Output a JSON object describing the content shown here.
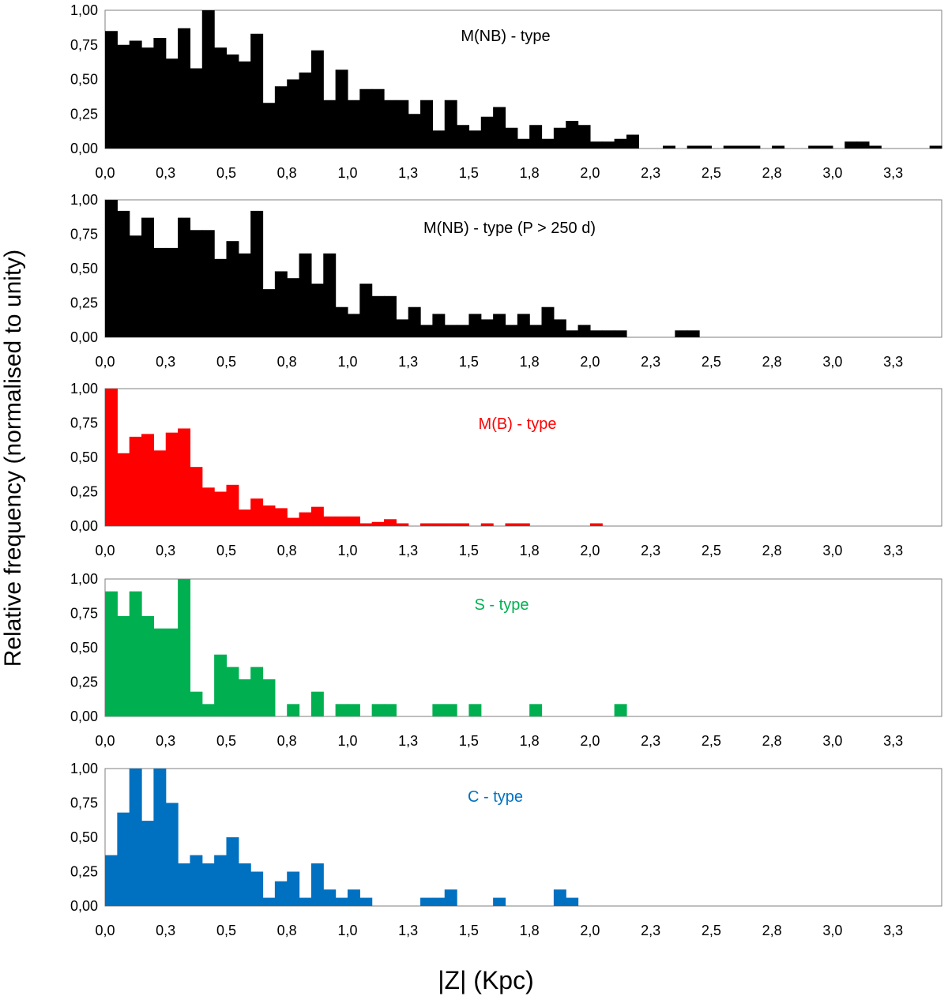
{
  "figure": {
    "ylabel": "Relative frequency (normalised to unity)",
    "xlabel": "|Z|  (Kpc)"
  },
  "chart_data": [
    {
      "type": "bar",
      "title": "M(NB) - type",
      "color": "#000000",
      "xlim": [
        0,
        3.45
      ],
      "ylim": [
        0,
        1
      ],
      "bin_width": 0.05,
      "yticks": [
        "0,00",
        "0,25",
        "0,50",
        "0,75",
        "1,00"
      ],
      "xticks": [
        "0,0",
        "0,3",
        "0,5",
        "0,8",
        "1,0",
        "1,3",
        "1,5",
        "1,8",
        "2,0",
        "2,3",
        "2,5",
        "2,8",
        "3,0",
        "3,3"
      ],
      "values": [
        0.85,
        0.75,
        0.78,
        0.73,
        0.8,
        0.65,
        0.87,
        0.58,
        1.0,
        0.73,
        0.68,
        0.63,
        0.83,
        0.33,
        0.45,
        0.5,
        0.55,
        0.71,
        0.35,
        0.57,
        0.35,
        0.43,
        0.43,
        0.35,
        0.35,
        0.25,
        0.35,
        0.13,
        0.35,
        0.17,
        0.13,
        0.23,
        0.3,
        0.15,
        0.07,
        0.17,
        0.07,
        0.15,
        0.2,
        0.17,
        0.05,
        0.05,
        0.07,
        0.1,
        0,
        0,
        0.02,
        0,
        0.02,
        0.02,
        0,
        0.02,
        0.02,
        0.02,
        0,
        0.02,
        0,
        0,
        0.02,
        0.02,
        0,
        0.05,
        0.05,
        0.02,
        0,
        0,
        0,
        0,
        0.02
      ]
    },
    {
      "type": "bar",
      "title": "M(NB) - type (P > 250 d)",
      "color": "#000000",
      "xlim": [
        0,
        3.45
      ],
      "ylim": [
        0,
        1
      ],
      "bin_width": 0.05,
      "yticks": [
        "0,00",
        "0,25",
        "0,50",
        "0,75",
        "1,00"
      ],
      "xticks": [
        "0,0",
        "0,3",
        "0,5",
        "0,8",
        "1,0",
        "1,3",
        "1,5",
        "1,8",
        "2,0",
        "2,3",
        "2,5",
        "2,8",
        "3,0",
        "3,3"
      ],
      "values": [
        1.0,
        0.92,
        0.74,
        0.87,
        0.65,
        0.65,
        0.87,
        0.78,
        0.78,
        0.57,
        0.7,
        0.61,
        0.92,
        0.35,
        0.48,
        0.43,
        0.61,
        0.39,
        0.61,
        0.22,
        0.17,
        0.39,
        0.3,
        0.3,
        0.13,
        0.22,
        0.09,
        0.17,
        0.09,
        0.09,
        0.17,
        0.13,
        0.17,
        0.09,
        0.17,
        0.09,
        0.22,
        0.13,
        0.05,
        0.09,
        0.05,
        0.05,
        0.05,
        0,
        0,
        0,
        0,
        0.05,
        0.05
      ]
    },
    {
      "type": "bar",
      "title": "M(B) - type",
      "color": "#ff0000",
      "xlim": [
        0,
        3.45
      ],
      "ylim": [
        0,
        1
      ],
      "bin_width": 0.05,
      "yticks": [
        "0,00",
        "0,25",
        "0,50",
        "0,75",
        "1,00"
      ],
      "xticks": [
        "0,0",
        "0,3",
        "0,5",
        "0,8",
        "1,0",
        "1,3",
        "1,5",
        "1,8",
        "2,0",
        "2,3",
        "2,5",
        "2,8",
        "3,0",
        "3,3"
      ],
      "values": [
        1.0,
        0.53,
        0.65,
        0.67,
        0.55,
        0.68,
        0.71,
        0.43,
        0.28,
        0.25,
        0.3,
        0.12,
        0.2,
        0.15,
        0.13,
        0.06,
        0.1,
        0.14,
        0.07,
        0.07,
        0.07,
        0.02,
        0.03,
        0.05,
        0.02,
        0,
        0.02,
        0.02,
        0.02,
        0.02,
        0,
        0.02,
        0,
        0.02,
        0.02,
        0,
        0,
        0,
        0,
        0,
        0.02
      ]
    },
    {
      "type": "bar",
      "title": "S - type",
      "color": "#00b050",
      "xlim": [
        0,
        3.45
      ],
      "ylim": [
        0,
        1
      ],
      "bin_width": 0.05,
      "yticks": [
        "0,00",
        "0,25",
        "0,50",
        "0,75",
        "1,00"
      ],
      "xticks": [
        "0,0",
        "0,3",
        "0,5",
        "0,8",
        "1,0",
        "1,3",
        "1,5",
        "1,8",
        "2,0",
        "2,3",
        "2,5",
        "2,8",
        "3,0",
        "3,3"
      ],
      "values": [
        0.91,
        0.73,
        0.91,
        0.73,
        0.64,
        0.64,
        1.0,
        0.18,
        0.09,
        0.45,
        0.36,
        0.27,
        0.36,
        0.27,
        0,
        0.09,
        0,
        0.18,
        0,
        0.09,
        0.09,
        0,
        0.09,
        0.09,
        0,
        0,
        0,
        0.09,
        0.09,
        0,
        0.09,
        0,
        0,
        0,
        0,
        0.09,
        0,
        0,
        0,
        0,
        0,
        0,
        0.09
      ]
    },
    {
      "type": "bar",
      "title": "C - type",
      "color": "#0070c0",
      "xlim": [
        0,
        3.45
      ],
      "ylim": [
        0,
        1
      ],
      "bin_width": 0.05,
      "yticks": [
        "0,00",
        "0,25",
        "0,50",
        "0,75",
        "1,00"
      ],
      "xticks": [
        "0,0",
        "0,3",
        "0,5",
        "0,8",
        "1,0",
        "1,3",
        "1,5",
        "1,8",
        "2,0",
        "2,3",
        "2,5",
        "2,8",
        "3,0",
        "3,3"
      ],
      "values": [
        0.37,
        0.68,
        1.0,
        0.62,
        1.0,
        0.75,
        0.31,
        0.37,
        0.31,
        0.37,
        0.5,
        0.31,
        0.25,
        0.06,
        0.18,
        0.25,
        0.06,
        0.31,
        0.12,
        0.06,
        0.12,
        0.06,
        0,
        0,
        0,
        0,
        0.06,
        0.06,
        0.12,
        0,
        0,
        0,
        0.06,
        0,
        0,
        0,
        0,
        0.12,
        0.06
      ]
    }
  ]
}
